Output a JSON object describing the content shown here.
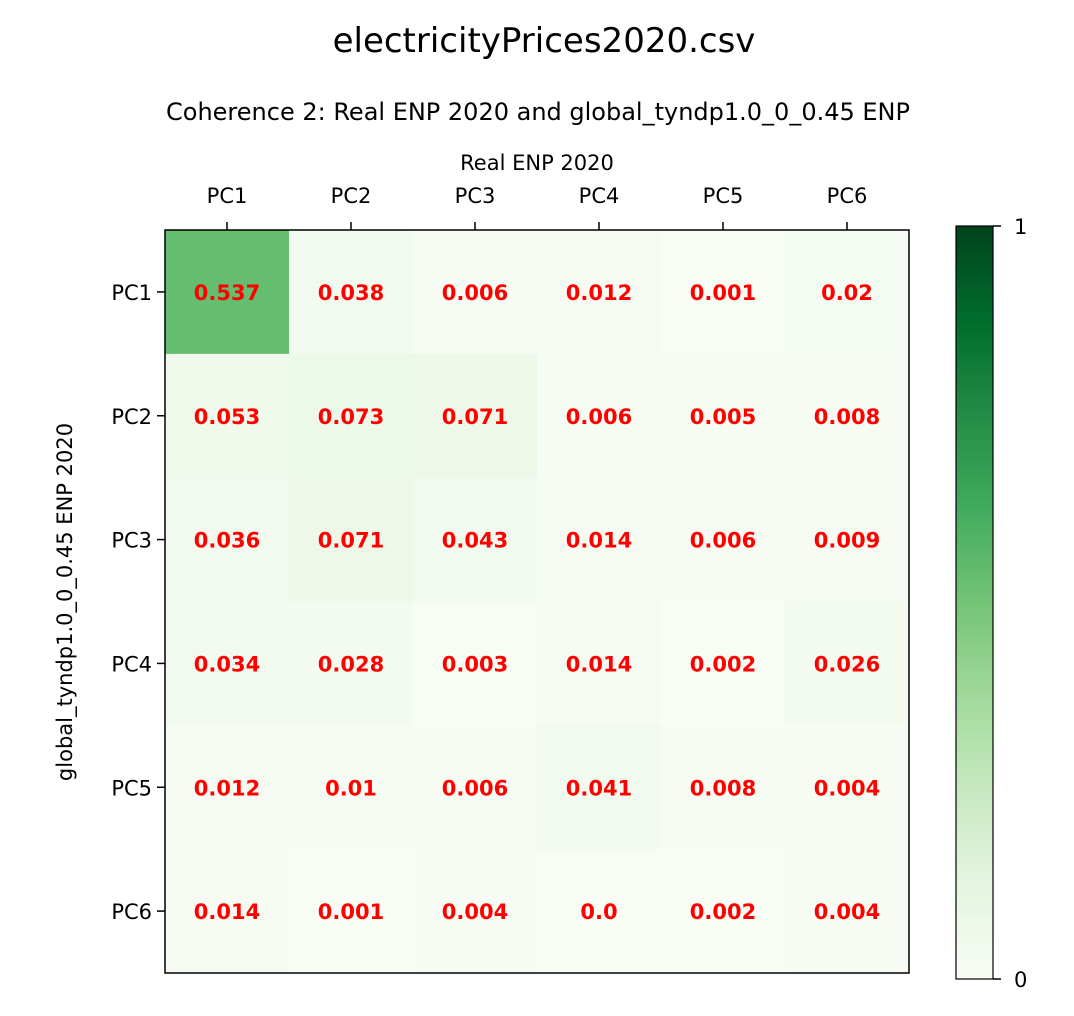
{
  "figure": {
    "suptitle": "electricityPrices2020.csv"
  },
  "chart_data": {
    "type": "heatmap",
    "title": "Coherence 2: Real ENP 2020 and global_tyndp1.0_0_0.45 ENP",
    "xlabel": "Real ENP 2020",
    "ylabel": "global_tyndp1.0_0_0.45 ENP 2020",
    "x_categories": [
      "PC1",
      "PC2",
      "PC3",
      "PC4",
      "PC5",
      "PC6"
    ],
    "y_categories": [
      "PC1",
      "PC2",
      "PC3",
      "PC4",
      "PC5",
      "PC6"
    ],
    "values": [
      [
        0.537,
        0.038,
        0.006,
        0.012,
        0.001,
        0.02
      ],
      [
        0.053,
        0.073,
        0.071,
        0.006,
        0.005,
        0.008
      ],
      [
        0.036,
        0.071,
        0.043,
        0.014,
        0.006,
        0.009
      ],
      [
        0.034,
        0.028,
        0.003,
        0.014,
        0.002,
        0.026
      ],
      [
        0.012,
        0.01,
        0.006,
        0.041,
        0.008,
        0.004
      ],
      [
        0.014,
        0.001,
        0.004,
        0.0,
        0.002,
        0.004
      ]
    ],
    "value_labels": [
      [
        "0.537",
        "0.038",
        "0.006",
        "0.012",
        "0.001",
        "0.02"
      ],
      [
        "0.053",
        "0.073",
        "0.071",
        "0.006",
        "0.005",
        "0.008"
      ],
      [
        "0.036",
        "0.071",
        "0.043",
        "0.014",
        "0.006",
        "0.009"
      ],
      [
        "0.034",
        "0.028",
        "0.003",
        "0.014",
        "0.002",
        "0.026"
      ],
      [
        "0.012",
        "0.01",
        "0.006",
        "0.041",
        "0.008",
        "0.004"
      ],
      [
        "0.014",
        "0.001",
        "0.004",
        "0.0",
        "0.002",
        "0.004"
      ]
    ],
    "colormap": "Greens",
    "vmin": 0,
    "vmax": 1,
    "colorbar_ticks": [
      "0",
      "1"
    ],
    "label_color": "#ff0000",
    "x_axis_position": "top",
    "grid": false
  }
}
